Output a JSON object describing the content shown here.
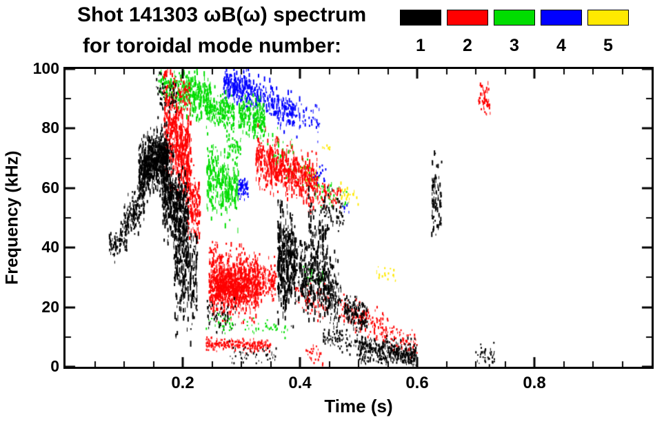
{
  "header": {
    "title": "Shot 141303 ωB(ω) spectrum",
    "subtitle": "for toroidal mode number:"
  },
  "legend": {
    "modes": [
      {
        "label": "1",
        "color": "#000000"
      },
      {
        "label": "2",
        "color": "#ff0000"
      },
      {
        "label": "3",
        "color": "#00dd00"
      },
      {
        "label": "4",
        "color": "#0000ff"
      },
      {
        "label": "5",
        "color": "#ffe900"
      }
    ]
  },
  "chart_data": {
    "type": "scatter",
    "title": "Shot 141303 ωB(ω) spectrum for toroidal mode number: 1 2 3 4 5",
    "xlabel": "Time (s)",
    "ylabel": "Frequency (kHz)",
    "xlim": [
      0,
      1
    ],
    "ylim": [
      0,
      100
    ],
    "xticks": [
      0.2,
      0.4,
      0.6,
      0.8
    ],
    "xtick_labels": [
      "0.2",
      "0.4",
      "0.6",
      "0.8"
    ],
    "yticks": [
      0,
      20,
      40,
      60,
      80,
      100
    ],
    "ytick_labels": [
      "0",
      "20",
      "40",
      "60",
      "80",
      "100"
    ],
    "x_minor": 0.05,
    "y_minor": 10,
    "grid": false,
    "legend_position": "top",
    "cluster_format": [
      "t_start_s",
      "t_end_s",
      "f_center_at_start_kHz",
      "f_center_at_end_kHz",
      "f_spread_kHz",
      "point_count",
      "max_dash_height_px"
    ],
    "series": [
      {
        "name": "n=1",
        "color": "#000000",
        "clusters": [
          [
            0.075,
            0.105,
            41,
            43,
            2.5,
            90,
            6
          ],
          [
            0.1,
            0.135,
            48,
            56,
            3.5,
            160,
            7
          ],
          [
            0.125,
            0.175,
            66,
            70,
            4.5,
            650,
            8
          ],
          [
            0.14,
            0.185,
            74,
            70,
            2.5,
            150,
            6
          ],
          [
            0.165,
            0.21,
            58,
            50,
            6.0,
            450,
            9
          ],
          [
            0.185,
            0.225,
            34,
            30,
            9.0,
            260,
            12
          ],
          [
            0.155,
            0.19,
            93,
            90,
            3.5,
            60,
            5
          ],
          [
            0.24,
            0.29,
            18,
            16,
            3.0,
            60,
            5
          ],
          [
            0.28,
            0.36,
            4,
            3,
            1.8,
            50,
            4
          ],
          [
            0.362,
            0.392,
            36,
            34,
            8.0,
            320,
            11
          ],
          [
            0.39,
            0.47,
            33,
            23,
            5.5,
            420,
            8
          ],
          [
            0.415,
            0.447,
            45,
            40,
            7.0,
            130,
            10
          ],
          [
            0.475,
            0.515,
            19,
            17,
            2.5,
            150,
            6
          ],
          [
            0.5,
            0.6,
            6,
            3.5,
            2.2,
            420,
            5
          ],
          [
            0.44,
            0.5,
            10,
            8,
            2.0,
            80,
            4
          ],
          [
            0.625,
            0.642,
            58,
            56,
            5.5,
            90,
            8
          ],
          [
            0.7,
            0.732,
            4,
            3,
            2.0,
            45,
            4
          ],
          [
            0.44,
            0.475,
            54,
            50,
            3.0,
            50,
            6
          ]
        ]
      },
      {
        "name": "n=2",
        "color": "#ff0000",
        "clusters": [
          [
            0.183,
            0.212,
            93,
            91,
            2.5,
            60,
            5
          ],
          [
            0.168,
            0.215,
            83,
            68,
            7.5,
            420,
            11
          ],
          [
            0.205,
            0.23,
            58,
            52,
            6.0,
            140,
            9
          ],
          [
            0.245,
            0.33,
            29,
            27,
            5.0,
            900,
            7
          ],
          [
            0.255,
            0.305,
            26,
            25,
            3.0,
            250,
            6
          ],
          [
            0.33,
            0.36,
            30,
            29,
            3.0,
            120,
            6
          ],
          [
            0.325,
            0.43,
            71,
            61,
            4.0,
            550,
            8
          ],
          [
            0.43,
            0.47,
            59,
            56,
            2.0,
            60,
            6
          ],
          [
            0.24,
            0.35,
            7.5,
            7,
            1.0,
            220,
            4
          ],
          [
            0.39,
            0.45,
            24,
            21,
            2.5,
            70,
            5
          ],
          [
            0.465,
            0.55,
            19,
            12,
            2.5,
            150,
            5
          ],
          [
            0.545,
            0.6,
            12,
            6,
            2.5,
            80,
            4
          ],
          [
            0.705,
            0.725,
            92,
            88,
            3.0,
            50,
            6
          ],
          [
            0.41,
            0.44,
            5,
            4,
            1.5,
            30,
            4
          ]
        ]
      },
      {
        "name": "n=3",
        "color": "#00dd00",
        "clusters": [
          [
            0.159,
            0.195,
            96,
            93,
            2.8,
            120,
            6
          ],
          [
            0.195,
            0.247,
            93,
            89,
            3.5,
            260,
            8
          ],
          [
            0.241,
            0.288,
            88,
            85,
            3.0,
            200,
            7
          ],
          [
            0.241,
            0.295,
            64,
            60,
            5.5,
            280,
            9
          ],
          [
            0.275,
            0.3,
            75,
            73,
            2.0,
            40,
            5
          ],
          [
            0.295,
            0.341,
            85,
            82,
            3.0,
            220,
            7
          ],
          [
            0.345,
            0.42,
            73,
            65,
            3.5,
            60,
            6
          ],
          [
            0.42,
            0.482,
            62,
            55,
            3.0,
            40,
            5
          ],
          [
            0.24,
            0.29,
            16,
            14,
            1.5,
            35,
            4
          ],
          [
            0.3,
            0.385,
            14,
            12,
            1.5,
            35,
            4
          ],
          [
            0.405,
            0.44,
            31,
            29,
            1.8,
            30,
            4
          ]
        ]
      },
      {
        "name": "n=4",
        "color": "#0000ff",
        "clusters": [
          [
            0.27,
            0.318,
            95.5,
            92.5,
            2.8,
            200,
            8
          ],
          [
            0.318,
            0.4,
            92,
            84,
            3.0,
            200,
            8
          ],
          [
            0.294,
            0.312,
            60,
            60,
            1.5,
            70,
            5
          ],
          [
            0.4,
            0.435,
            85,
            81,
            3.0,
            35,
            6
          ],
          [
            0.42,
            0.445,
            65,
            64,
            1.5,
            18,
            4
          ],
          [
            0.47,
            0.485,
            54,
            53,
            1.0,
            8,
            4
          ]
        ]
      },
      {
        "name": "n=5",
        "color": "#ffe900",
        "clusters": [
          [
            0.4,
            0.435,
            65,
            63,
            2.0,
            30,
            5
          ],
          [
            0.465,
            0.5,
            58,
            56,
            1.8,
            22,
            5
          ],
          [
            0.53,
            0.565,
            32,
            30,
            1.5,
            20,
            4
          ],
          [
            0.438,
            0.452,
            73,
            73,
            1.0,
            8,
            4
          ]
        ]
      }
    ]
  }
}
